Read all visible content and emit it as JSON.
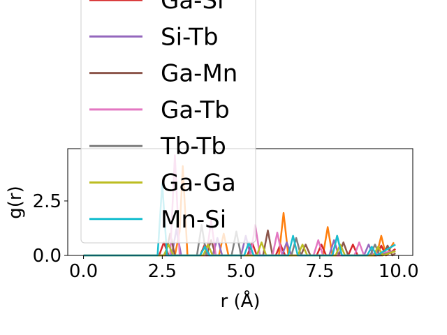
{
  "chart_data": {
    "type": "line",
    "title": "",
    "xlabel": "r (Å)",
    "ylabel": "g(r)",
    "xlim": [
      -0.5,
      10.45
    ],
    "ylim": [
      0,
      4.9
    ],
    "xticks": [
      "0.0",
      "2.5",
      "5.0",
      "7.5",
      "10.0"
    ],
    "xtick_values": [
      0,
      2.5,
      5,
      7.5,
      10
    ],
    "yticks": [
      "0.0",
      "2.5"
    ],
    "ytick_values": [
      0,
      2.5
    ],
    "grid": false,
    "legend_placement": "upper-left, overflowing above plot",
    "series": [
      {
        "name": "Ga-Si",
        "color": "#d62728",
        "points": [
          [
            0,
            0
          ],
          [
            2.4,
            0
          ],
          [
            2.55,
            0.6
          ],
          [
            2.7,
            0
          ],
          [
            3.7,
            0
          ],
          [
            3.85,
            0.5
          ],
          [
            4.0,
            0
          ],
          [
            5.2,
            0
          ],
          [
            5.35,
            0.6
          ],
          [
            5.5,
            0
          ],
          [
            6.1,
            0
          ],
          [
            6.25,
            0.5
          ],
          [
            6.4,
            0
          ],
          [
            7.4,
            0
          ],
          [
            7.55,
            0.5
          ],
          [
            7.7,
            0
          ],
          [
            8.4,
            0
          ],
          [
            8.55,
            0.5
          ],
          [
            8.7,
            0
          ],
          [
            9.3,
            0
          ],
          [
            9.45,
            0.45
          ],
          [
            9.6,
            0
          ],
          [
            9.9,
            0.3
          ]
        ]
      },
      {
        "name": "Si-Tb",
        "color": "#9467bd",
        "points": [
          [
            0,
            0
          ],
          [
            2.8,
            0
          ],
          [
            2.95,
            1.2
          ],
          [
            3.1,
            0
          ],
          [
            4.1,
            0
          ],
          [
            4.25,
            0.8
          ],
          [
            4.4,
            0
          ],
          [
            5.0,
            0
          ],
          [
            5.15,
            0.9
          ],
          [
            5.3,
            0
          ],
          [
            6.3,
            0
          ],
          [
            6.45,
            0.6
          ],
          [
            6.6,
            0
          ],
          [
            7.8,
            0
          ],
          [
            7.95,
            0.7
          ],
          [
            8.1,
            0
          ],
          [
            8.9,
            0
          ],
          [
            9.05,
            0.5
          ],
          [
            9.2,
            0
          ],
          [
            9.9,
            0.2
          ]
        ]
      },
      {
        "name": "Ga-Mn",
        "color": "#8c564b",
        "points": [
          [
            0,
            0
          ],
          [
            2.6,
            0
          ],
          [
            2.75,
            1.0
          ],
          [
            2.9,
            0
          ],
          [
            3.9,
            0
          ],
          [
            4.05,
            0.7
          ],
          [
            4.2,
            0
          ],
          [
            5.7,
            0
          ],
          [
            5.85,
            1.15
          ],
          [
            6.0,
            0
          ],
          [
            6.9,
            0
          ],
          [
            7.05,
            0.5
          ],
          [
            7.2,
            0
          ],
          [
            8.1,
            0
          ],
          [
            8.25,
            0.6
          ],
          [
            8.4,
            0
          ],
          [
            9.5,
            0
          ],
          [
            9.65,
            0.45
          ],
          [
            9.8,
            0
          ],
          [
            9.9,
            0.1
          ]
        ]
      },
      {
        "name": "Ga-Tb",
        "color": "#e377c2",
        "points": [
          [
            0,
            0
          ],
          [
            2.75,
            0
          ],
          [
            2.9,
            4.6
          ],
          [
            3.05,
            0
          ],
          [
            3.9,
            0
          ],
          [
            4.05,
            1.6
          ],
          [
            4.2,
            0
          ],
          [
            5.3,
            0
          ],
          [
            5.45,
            1.4
          ],
          [
            5.6,
            0
          ],
          [
            6.0,
            0
          ],
          [
            6.15,
            1.05
          ],
          [
            6.3,
            0
          ],
          [
            7.3,
            0
          ],
          [
            7.45,
            0.7
          ],
          [
            7.6,
            0
          ],
          [
            8.6,
            0
          ],
          [
            8.75,
            0.6
          ],
          [
            8.9,
            0
          ],
          [
            9.9,
            0.2
          ]
        ]
      },
      {
        "name": "Tb-Tb",
        "color": "#7f7f7f",
        "points": [
          [
            0,
            0
          ],
          [
            3.6,
            0
          ],
          [
            3.75,
            1.4
          ],
          [
            3.9,
            0
          ],
          [
            4.7,
            0
          ],
          [
            4.85,
            1.1
          ],
          [
            5.0,
            0
          ],
          [
            6.6,
            0
          ],
          [
            6.75,
            0.8
          ],
          [
            6.9,
            0
          ],
          [
            7.9,
            0
          ],
          [
            8.05,
            0.9
          ],
          [
            8.2,
            0
          ],
          [
            9.1,
            0
          ],
          [
            9.25,
            0.5
          ],
          [
            9.4,
            0
          ],
          [
            9.9,
            0.2
          ]
        ]
      },
      {
        "name": "Ga-Ga",
        "color": "#bcbd22",
        "points": [
          [
            0,
            0
          ],
          [
            2.55,
            0
          ],
          [
            2.7,
            0.5
          ],
          [
            2.85,
            0
          ],
          [
            3.8,
            0
          ],
          [
            3.95,
            0.5
          ],
          [
            4.1,
            0
          ],
          [
            5.5,
            0
          ],
          [
            5.65,
            0.6
          ],
          [
            5.8,
            0
          ],
          [
            6.8,
            0
          ],
          [
            6.95,
            0.5
          ],
          [
            7.1,
            0
          ],
          [
            8.0,
            0
          ],
          [
            8.15,
            0.5
          ],
          [
            8.3,
            0
          ],
          [
            9.2,
            0
          ],
          [
            9.35,
            0.4
          ],
          [
            9.5,
            0
          ],
          [
            9.9,
            0.2
          ]
        ]
      },
      {
        "name": "Mn-Si",
        "color": "#17becf",
        "points": [
          [
            0,
            0
          ],
          [
            2.35,
            0
          ],
          [
            2.5,
            3.3
          ],
          [
            2.65,
            0
          ],
          [
            3.7,
            0
          ],
          [
            3.85,
            0.4
          ],
          [
            4.0,
            0
          ],
          [
            5.1,
            0
          ],
          [
            5.25,
            0.6
          ],
          [
            5.4,
            0
          ],
          [
            6.5,
            0
          ],
          [
            6.65,
            0.9
          ],
          [
            6.8,
            0
          ],
          [
            7.9,
            0
          ],
          [
            8.05,
            0.9
          ],
          [
            8.2,
            0
          ],
          [
            9.0,
            0
          ],
          [
            9.15,
            0.4
          ],
          [
            9.3,
            0
          ],
          [
            9.9,
            0.5
          ]
        ]
      }
    ],
    "hidden_series": [
      {
        "color": "#ff7f0e",
        "points": [
          [
            0,
            0
          ],
          [
            2.9,
            0
          ],
          [
            3.05,
            1.1
          ],
          [
            3.15,
            4.1
          ],
          [
            3.3,
            0
          ],
          [
            4.3,
            0
          ],
          [
            4.45,
            1.0
          ],
          [
            4.6,
            0
          ],
          [
            6.2,
            0
          ],
          [
            6.35,
            1.95
          ],
          [
            6.5,
            0
          ],
          [
            7.6,
            0
          ],
          [
            7.75,
            1.3
          ],
          [
            7.9,
            0
          ],
          [
            9.3,
            0
          ],
          [
            9.45,
            0.9
          ],
          [
            9.6,
            0
          ],
          [
            9.85,
            0.6
          ]
        ]
      }
    ]
  }
}
